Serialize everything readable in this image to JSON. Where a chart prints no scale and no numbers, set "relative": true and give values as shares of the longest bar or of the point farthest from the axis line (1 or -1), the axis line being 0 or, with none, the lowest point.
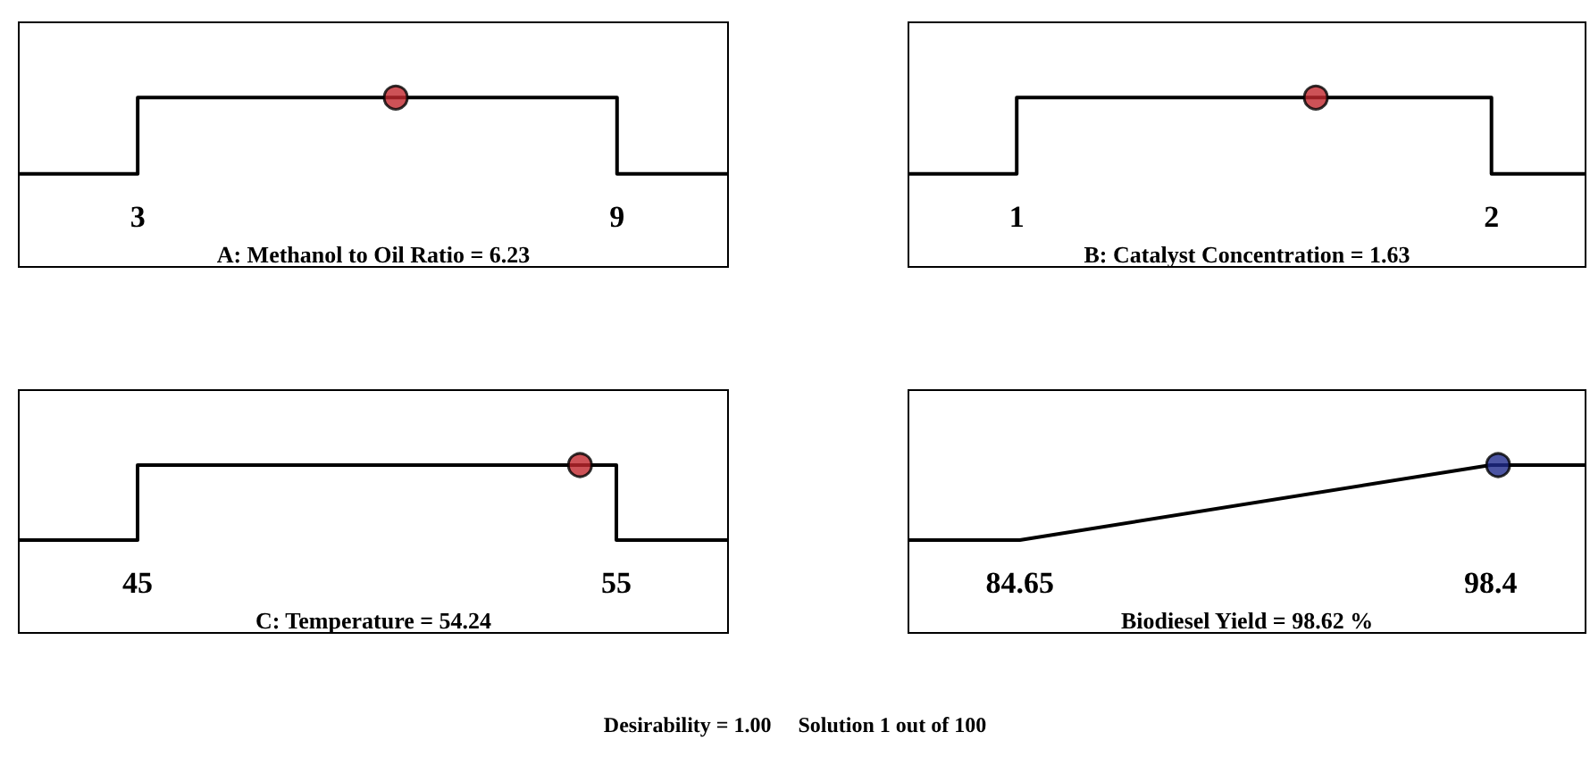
{
  "chart_data": [
    {
      "type": "line",
      "xlabel": "A: Methanol to Oil Ratio = 6.23",
      "xlim": [
        1.5,
        10.4
      ],
      "xticks": [
        3,
        9
      ],
      "relative": true,
      "tick_labels": "x",
      "series": [
        {
          "type": "line",
          "color": "#000000",
          "marker": "none",
          "x": [
            1.5,
            3,
            3,
            9,
            9,
            10.4
          ],
          "values": [
            0,
            0,
            1,
            1,
            0,
            0
          ]
        },
        {
          "type": "scatter",
          "color": "#c0272d",
          "marker": "circle",
          "x": [
            6.23
          ],
          "values": [
            1
          ]
        }
      ]
    },
    {
      "type": "line",
      "xlabel": "B: Catalyst Concentration = 1.63",
      "xlim": [
        0.77,
        2.2
      ],
      "xticks": [
        1,
        2
      ],
      "relative": true,
      "tick_labels": "x",
      "series": [
        {
          "type": "line",
          "color": "#000000",
          "marker": "none",
          "x": [
            0.77,
            1,
            1,
            2,
            2,
            2.2
          ],
          "values": [
            0,
            0,
            1,
            1,
            0,
            0
          ]
        },
        {
          "type": "scatter",
          "color": "#c0272d",
          "marker": "circle",
          "x": [
            1.63
          ],
          "values": [
            1
          ]
        }
      ]
    },
    {
      "type": "line",
      "xlabel": "C: Temperature = 54.24",
      "xlim": [
        42.5,
        57.35
      ],
      "xticks": [
        45,
        55
      ],
      "relative": true,
      "tick_labels": "x",
      "series": [
        {
          "type": "line",
          "color": "#000000",
          "marker": "none",
          "x": [
            42.5,
            45,
            45,
            55,
            55,
            57.35
          ],
          "values": [
            0,
            0,
            1,
            1,
            0,
            0
          ]
        },
        {
          "type": "scatter",
          "color": "#c0272d",
          "marker": "circle",
          "x": [
            54.24
          ],
          "values": [
            1
          ]
        }
      ]
    },
    {
      "type": "line",
      "xlabel": "Biodiesel Yield = 98.62 %",
      "xlim": [
        81.37,
        101.2
      ],
      "xticks": [
        84.65,
        98.4
      ],
      "relative": true,
      "tick_labels": "x",
      "annotations": [
        "Desirability = 1.00     Solution 1 out of 100"
      ],
      "series": [
        {
          "type": "line",
          "color": "#000000",
          "marker": "none",
          "x": [
            81.37,
            84.65,
            98.4,
            101.2
          ],
          "values": [
            0,
            0,
            1,
            1
          ]
        },
        {
          "type": "scatter",
          "color": "#1f2a8c",
          "marker": "circle",
          "x": [
            98.62
          ],
          "values": [
            1
          ]
        }
      ]
    }
  ]
}
